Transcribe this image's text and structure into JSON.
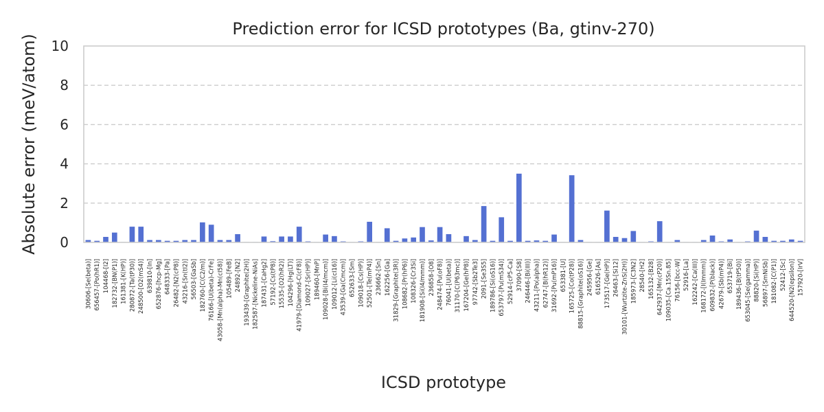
{
  "chart_data": {
    "type": "bar",
    "title": "Prediction error for ICSD prototypes (Ba, gtinv-270)",
    "xlabel": "ICSD prototype",
    "ylabel": "Absolute error (meV/atom)",
    "ylim": [
      0,
      10
    ],
    "yticks": [
      0,
      2,
      4,
      6,
      8,
      10
    ],
    "grid": "horizontal dashed",
    "bar_color": "#5470d2",
    "categories": [
      "30606-[Se(beta)]",
      "656457-[Po(hR1)]",
      "104468-[I2]",
      "182732-[BN(P1)]",
      "161381-[K(HP)]",
      "280872-[Ta(tP30)]",
      "248500-[O2(mS4)]",
      "639810-[In]",
      "652876-[hcp-Mg]",
      "648333-[Pa]",
      "26482-[N2(cP8)]",
      "43216-[Sn(tI2)]",
      "56503-[GaSb]",
      "182760-[C(C2/m)]",
      "76166-[U(beta)-CrFe]",
      "43058-[Mn(alpha)-Mn(cI58)]",
      "105489-[FeB]",
      "24892-[N2]",
      "193439-[Graphite(2H)]",
      "182587-[Nickeline-NiAs]",
      "187431-[CaHg2]",
      "57192-[Cs(tP8)]",
      "15535-[O2(hR2)]",
      "104296-[Hg(LT)]",
      "41979-[Diamond-C(cF8)]",
      "109027-[Sr(HP)]",
      "189460-[MnP]",
      "109028-[Bi(I4/mcm)]",
      "109012-[Li(cI16)]",
      "43539-[Ga(Cmcm)]",
      "652633-[Sm]",
      "109018-[Cs(HP)]",
      "52501-[Te(mP4)]",
      "236662-[Sn]",
      "162256-[Ga]",
      "31829-[Graphite(3R)]",
      "108682-[Pr(hP6)]",
      "108326-[Cr3Si]",
      "181908-[Si(I4/mmm)]",
      "236858-[O8]",
      "248474-[Pu(oF8)]",
      "76041-[U(beta)]",
      "31170-[C(P63mc)]",
      "167204-[Ge(hP8)]",
      "97742-[Sb2Te3]",
      "2091-[Se3S5]",
      "189786-[Si(oS16)]",
      "653797-[Pu(mS34)]",
      "52914-[cP5-Ca]",
      "37090-[S8]",
      "246446-[Bi(III)]",
      "43211-[Po(alpha)]",
      "62747-[B(hR12)]",
      "31692-[Pu(mP16)]",
      "653381-[U]",
      "165725-[Co(tP28)]",
      "88815-[Graphite(oS16)]",
      "245956-[Ge]",
      "616526-[As]",
      "173517-[Ge(HP)]",
      "26463-[Si12]",
      "30101-[Wurtzite-ZnS(2H)]",
      "185973-[C3N2]",
      "28540-[H2]",
      "165132-[B28]",
      "642937-[Mn(cP20)]",
      "109035-[Ca.15Sn.85]",
      "76156-[bcc-W]",
      "52916-[La]",
      "162242-[Ca(III)]",
      "168172-[I(Immm)]",
      "609832-[P(black)]",
      "42679-[Sb(mP4)]",
      "653719-[Bi]",
      "189436-[B(tP50)]",
      "653045-[Se(gamma)]",
      "88820-[Si(HP)]",
      "56897-[SmNiSb]",
      "181082-[C(P1)]",
      "52412-[Sc]",
      "644520-[N2(epsilon)]",
      "157920-[IrV]"
    ],
    "values": [
      0.12,
      0.08,
      0.28,
      0.5,
      0.02,
      0.8,
      0.8,
      0.12,
      0.12,
      0.08,
      0.08,
      0.12,
      0.12,
      1.02,
      0.9,
      0.12,
      0.12,
      0.42,
      0.02,
      0.02,
      0.3,
      0.06,
      0.3,
      0.3,
      0.8,
      0.05,
      0.02,
      0.4,
      0.32,
      0.05,
      0.02,
      0.05,
      1.05,
      0.02,
      0.72,
      0.08,
      0.2,
      0.25,
      0.78,
      0.1,
      0.78,
      0.42,
      0.02,
      0.32,
      0.12,
      1.85,
      0.08,
      1.28,
      0.08,
      3.5,
      0.08,
      0.1,
      0.08,
      0.4,
      0.02,
      3.42,
      0.12,
      0.02,
      0.02,
      1.62,
      0.28,
      0.22,
      0.58,
      0.02,
      0.05,
      1.08,
      0.02,
      0.12,
      0.02,
      0.02,
      0.12,
      0.35,
      0.05,
      0.15,
      0.02,
      0.05,
      0.6,
      0.28,
      0.08,
      0.08,
      0.15,
      0.08
    ]
  }
}
